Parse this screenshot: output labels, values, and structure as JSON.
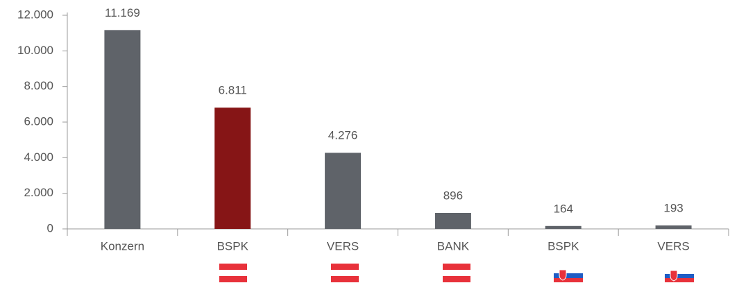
{
  "chart_data": {
    "type": "bar",
    "categories": [
      "Konzern",
      "BSPK",
      "VERS",
      "BANK",
      "BSPK",
      "VERS"
    ],
    "values": [
      11169,
      6811,
      4276,
      896,
      164,
      193
    ],
    "value_labels": [
      "11.169",
      "6.811",
      "4.276",
      "896",
      "164",
      "193"
    ],
    "colors": [
      "#5f6369",
      "#861516",
      "#5f6369",
      "#5f6369",
      "#5f6369",
      "#5f6369"
    ],
    "ylim": [
      0,
      12000
    ],
    "yticks": [
      0,
      {
        "value": 2000,
        "label": "2.000"
      },
      {
        "value": 4000,
        "label": "4.000"
      },
      {
        "value": 6000,
        "label": "6.000"
      },
      {
        "value": 8000,
        "label": "8.000"
      },
      {
        "value": 10000,
        "label": "10.000"
      },
      {
        "value": 12000,
        "label": "12.000"
      }
    ],
    "grid": false
  }
}
